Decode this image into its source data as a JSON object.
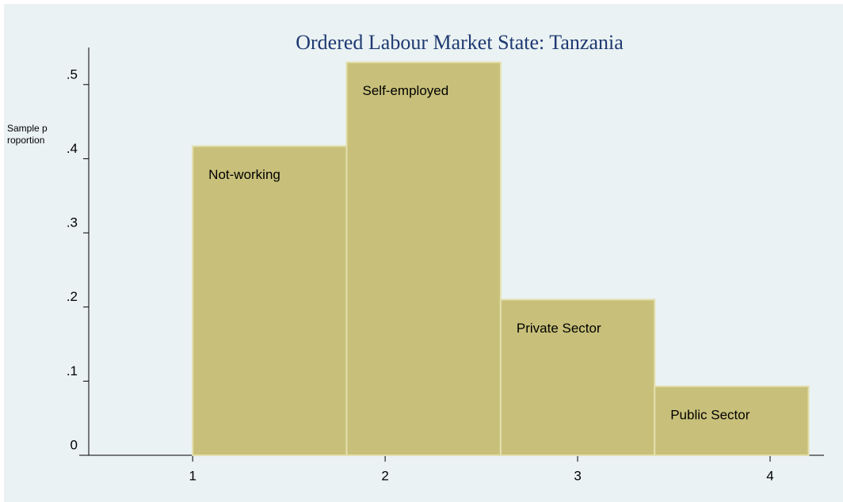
{
  "chart_data": {
    "type": "histogram",
    "title": "Ordered Labour Market State: Tanzania",
    "y_label": "Sample proportion",
    "bins": [
      1,
      1.8,
      2.6,
      3.4,
      4.2
    ],
    "values": [
      0.417,
      0.53,
      0.21,
      0.093
    ],
    "bar_labels": [
      "Not-working",
      "Self-employed",
      "Private Sector",
      "Public Sector"
    ],
    "color": "#c8c07a",
    "xlim": [
      0.46,
      4.28
    ],
    "xticks": [
      1,
      2,
      3,
      4
    ],
    "ylim": [
      0,
      0.55
    ],
    "yticks": [
      0,
      {
        "value": 0.1,
        "label": ".1"
      },
      {
        "value": 0.2,
        "label": ".2"
      },
      {
        "value": 0.3,
        "label": ".3"
      },
      {
        "value": 0.4,
        "label": ".4"
      },
      {
        "value": 0.5,
        "label": ".5"
      }
    ],
    "grid": false
  }
}
